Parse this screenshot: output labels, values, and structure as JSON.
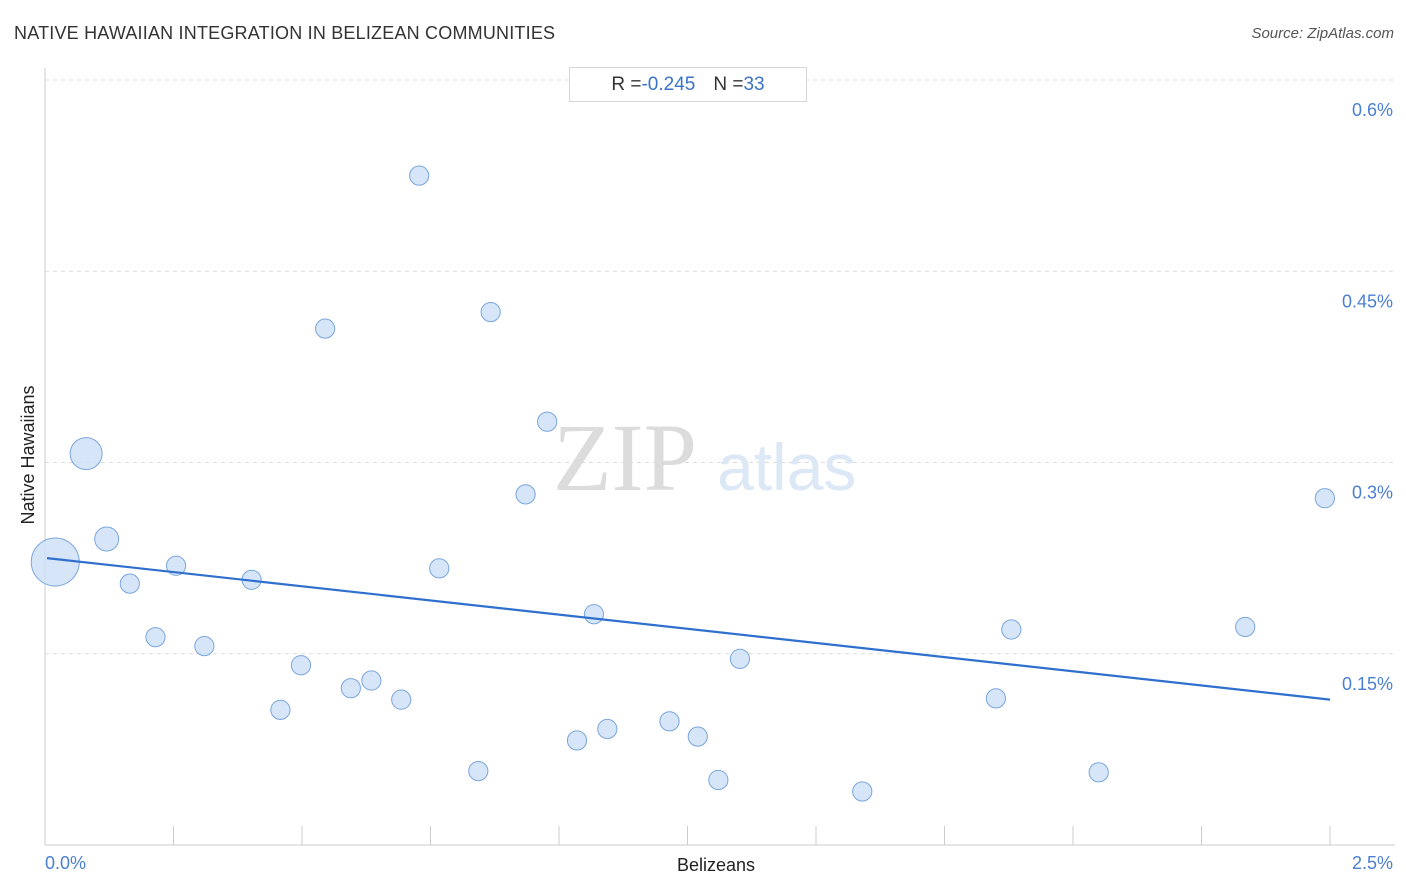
{
  "header": {
    "title": "NATIVE HAWAIIAN INTEGRATION IN BELIZEAN COMMUNITIES",
    "source": "Source: ZipAtlas.com"
  },
  "stats": {
    "r_label": "R = ",
    "r_value": "-0.245",
    "n_label": "N = ",
    "n_value": "33"
  },
  "watermark": {
    "zip": "ZIP",
    "atlas": "atlas"
  },
  "colors": {
    "point_fill": "#cfe0f6",
    "point_stroke": "#7aa6de",
    "trend": "#2f6fcd",
    "grid": "#dddddd",
    "tick_label": "#4a7fd1"
  },
  "chart_data": {
    "type": "scatter",
    "title": "NATIVE HAWAIIAN INTEGRATION IN BELIZEAN COMMUNITIES",
    "xlabel": "Belizeans",
    "ylabel": "Native Hawaiians",
    "xlim": [
      0.0,
      2.5
    ],
    "ylim": [
      0.0,
      0.6
    ],
    "x_tick_labels": [
      {
        "value": 0.0,
        "label": "0.0%"
      },
      {
        "value": 2.5,
        "label": "2.5%"
      }
    ],
    "y_tick_labels": [
      {
        "value": 0.15,
        "label": "0.15%"
      },
      {
        "value": 0.3,
        "label": "0.3%"
      },
      {
        "value": 0.45,
        "label": "0.45%"
      },
      {
        "value": 0.6,
        "label": "0.6%"
      }
    ],
    "grid": true,
    "points": [
      {
        "x": 0.02,
        "y": 0.222,
        "size": 3
      },
      {
        "x": 0.08,
        "y": 0.307,
        "size": 2
      },
      {
        "x": 0.12,
        "y": 0.24,
        "size": 1.5
      },
      {
        "x": 0.165,
        "y": 0.205,
        "size": 1.2
      },
      {
        "x": 0.215,
        "y": 0.163,
        "size": 1.2
      },
      {
        "x": 0.255,
        "y": 0.219,
        "size": 1.2
      },
      {
        "x": 0.31,
        "y": 0.156,
        "size": 1.2
      },
      {
        "x": 0.402,
        "y": 0.208,
        "size": 1.2
      },
      {
        "x": 0.458,
        "y": 0.106,
        "size": 1.2
      },
      {
        "x": 0.498,
        "y": 0.141,
        "size": 1.2
      },
      {
        "x": 0.545,
        "y": 0.405,
        "size": 1.2
      },
      {
        "x": 0.595,
        "y": 0.123,
        "size": 1.2
      },
      {
        "x": 0.635,
        "y": 0.129,
        "size": 1.2
      },
      {
        "x": 0.693,
        "y": 0.114,
        "size": 1.2
      },
      {
        "x": 0.728,
        "y": 0.525,
        "size": 1.2
      },
      {
        "x": 0.767,
        "y": 0.217,
        "size": 1.2
      },
      {
        "x": 0.843,
        "y": 0.058,
        "size": 1.2
      },
      {
        "x": 0.867,
        "y": 0.418,
        "size": 1.2
      },
      {
        "x": 0.935,
        "y": 0.275,
        "size": 1.2
      },
      {
        "x": 0.977,
        "y": 0.332,
        "size": 1.2
      },
      {
        "x": 1.035,
        "y": 0.082,
        "size": 1.2
      },
      {
        "x": 1.068,
        "y": 0.181,
        "size": 1.2
      },
      {
        "x": 1.094,
        "y": 0.091,
        "size": 1.2
      },
      {
        "x": 1.215,
        "y": 0.097,
        "size": 1.2
      },
      {
        "x": 1.27,
        "y": 0.085,
        "size": 1.2
      },
      {
        "x": 1.31,
        "y": 0.051,
        "size": 1.2
      },
      {
        "x": 1.352,
        "y": 0.146,
        "size": 1.2
      },
      {
        "x": 1.59,
        "y": 0.042,
        "size": 1.2
      },
      {
        "x": 1.85,
        "y": 0.115,
        "size": 1.2
      },
      {
        "x": 1.88,
        "y": 0.169,
        "size": 1.2
      },
      {
        "x": 2.05,
        "y": 0.057,
        "size": 1.2
      },
      {
        "x": 2.335,
        "y": 0.171,
        "size": 1.2
      },
      {
        "x": 2.49,
        "y": 0.272,
        "size": 1.2
      }
    ],
    "trendline": {
      "x0": 0.0,
      "y0": 0.225,
      "x1": 2.5,
      "y1": 0.114
    }
  }
}
